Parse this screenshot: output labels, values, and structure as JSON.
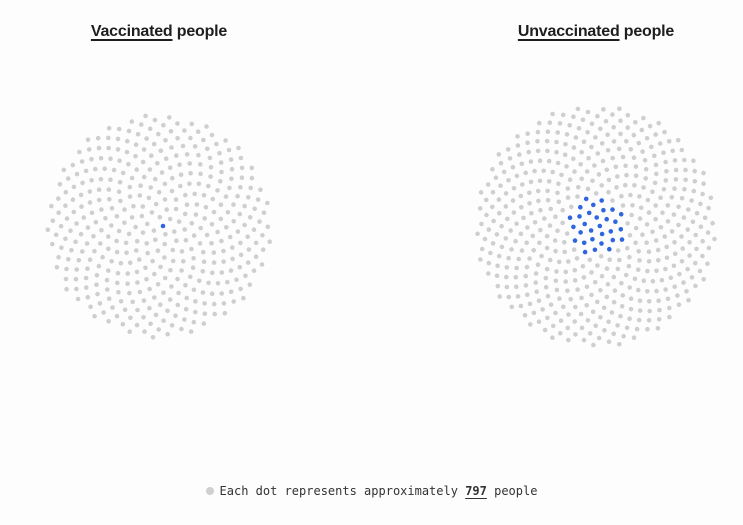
{
  "chart_data": {
    "type": "dot_cluster",
    "panels": [
      {
        "title_emph": "Vaccinated",
        "title_rest": " people",
        "total_dots": 400,
        "highlighted_dots": 1
      },
      {
        "title_emph": "Unvaccinated",
        "title_rest": " people",
        "total_dots": 500,
        "highlighted_dots": 30
      }
    ]
  },
  "footnote": {
    "prefix": "Each dot represents approximately ",
    "value": "797",
    "suffix": " people"
  },
  "colors": {
    "base_dot": "#cfcfcf",
    "highlight_dot": "#2f66e0",
    "text": "#1e1e1e",
    "background": "#fdfdfd"
  }
}
